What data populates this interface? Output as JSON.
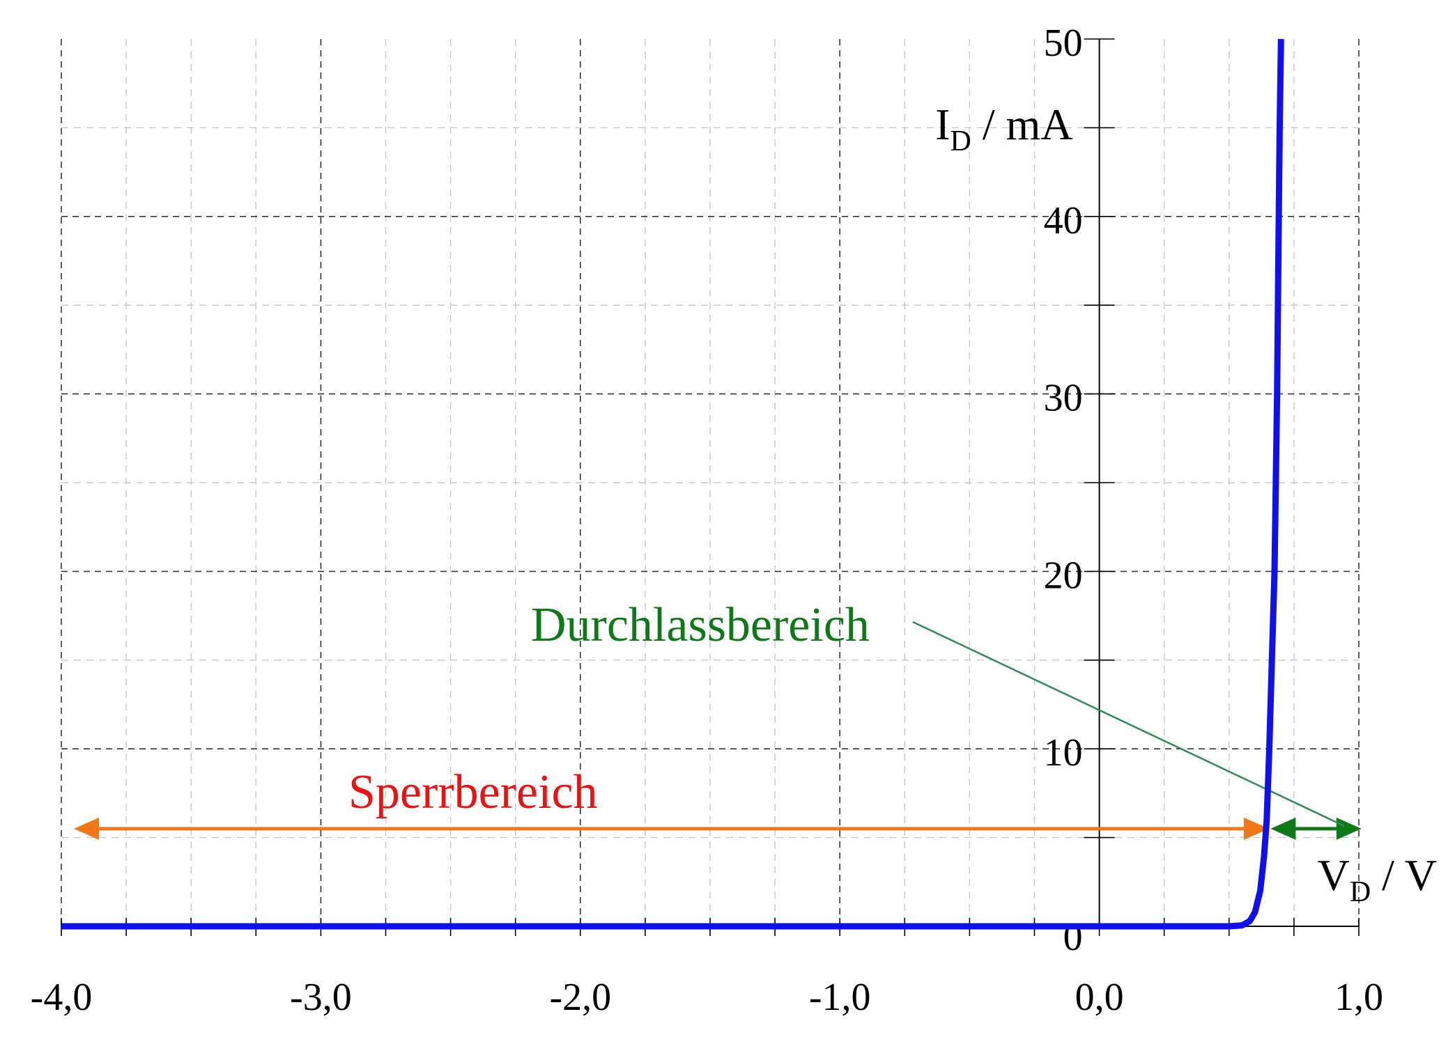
{
  "chart_data": {
    "type": "line",
    "title": "",
    "xlabel": {
      "main": "V",
      "sub": "D",
      "unit": " / V"
    },
    "ylabel": {
      "main": "I",
      "sub": "D",
      "unit": " / mA"
    },
    "xlim": [
      -4.0,
      1.0
    ],
    "ylim": [
      0,
      50
    ],
    "x_ticks": [
      -4.0,
      -3.0,
      -2.0,
      -1.0,
      0.0,
      1.0
    ],
    "x_tick_labels": [
      "-4,0",
      "-3,0",
      "-2,0",
      "-1,0",
      "0,0",
      "1,0"
    ],
    "y_ticks": [
      0,
      10,
      20,
      30,
      40,
      50
    ],
    "y_tick_labels": [
      "0",
      "10",
      "20",
      "30",
      "40",
      "50"
    ],
    "grid": true,
    "series": [
      {
        "color": "#1010ee",
        "x": [
          -4.0,
          -3.0,
          -2.0,
          -1.0,
          0.0,
          0.5,
          0.55,
          0.58,
          0.6,
          0.62,
          0.635,
          0.645,
          0.655,
          0.665,
          0.675,
          0.685,
          0.69,
          0.695,
          0.7
        ],
        "y": [
          0,
          0,
          0,
          0,
          0,
          0,
          0.05,
          0.3,
          0.8,
          2,
          4,
          6,
          10,
          15,
          20,
          30,
          38,
          45,
          50
        ]
      }
    ],
    "annotations": [
      {
        "text": "Sperrbereich",
        "color": "#ee1111",
        "x_from": -4.0,
        "x_to": 0.64,
        "y": 5.5,
        "arrow_color": "#f07818"
      },
      {
        "text": "Durchlassbereich",
        "color": "#0d7a17",
        "x_from": 0.66,
        "x_to": 0.97,
        "y": 5.5,
        "arrow_color": "#0d7a17",
        "leader_color": "#2e8b57"
      }
    ]
  }
}
